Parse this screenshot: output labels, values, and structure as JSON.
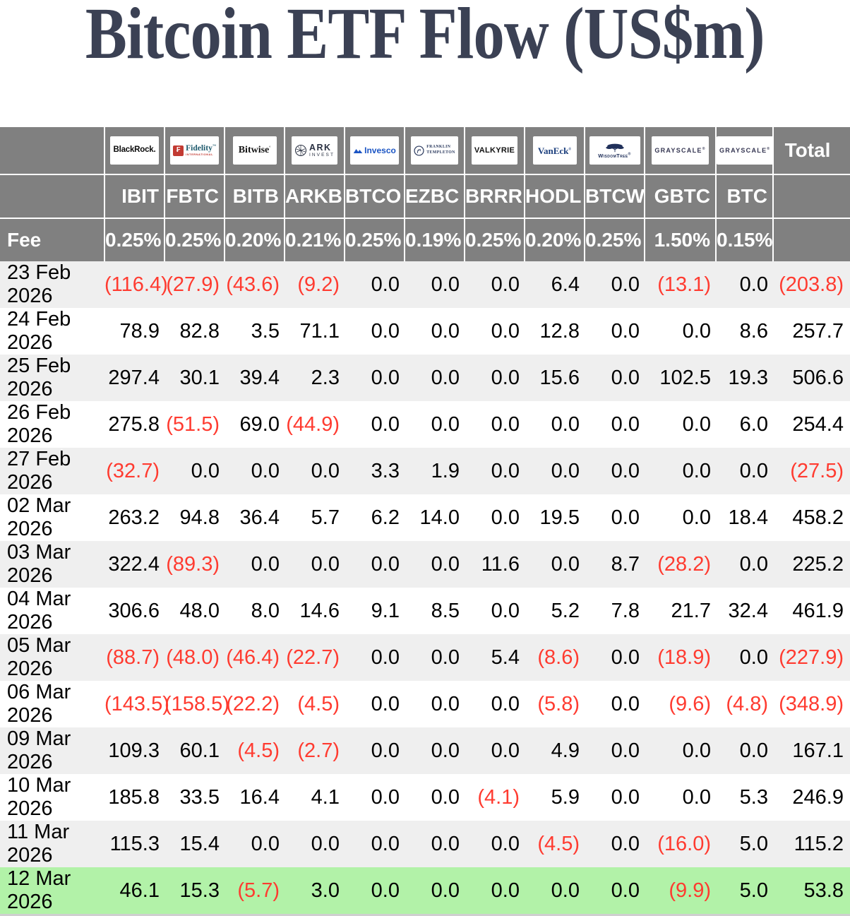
{
  "title": "Bitcoin ETF Flow (US$m)",
  "table": {
    "fee_label": "Fee",
    "total_label": "Total",
    "columns": [
      {
        "ticker": "IBIT",
        "provider": "BlackRock",
        "fee": "0.25%",
        "logo": {
          "text": "BlackRock."
        }
      },
      {
        "ticker": "FBTC",
        "provider": "Fidelity International",
        "fee": "0.25%",
        "logo": {
          "symbol": "₣",
          "text": "Fidelity",
          "mark": "™",
          "subtext": "INTERNATIONAL"
        }
      },
      {
        "ticker": "BITB",
        "provider": "Bitwise",
        "fee": "0.20%",
        "logo": {
          "text": "Bitwise",
          "mark": "°"
        }
      },
      {
        "ticker": "ARKB",
        "provider": "ARK Invest",
        "fee": "0.21%",
        "logo": {
          "text": "ARK",
          "subtext": "INVEST"
        }
      },
      {
        "ticker": "BTCO",
        "provider": "Invesco",
        "fee": "0.25%",
        "logo": {
          "text": "Invesco"
        }
      },
      {
        "ticker": "EZBC",
        "provider": "Franklin Templeton",
        "fee": "0.19%",
        "logo": {
          "text": "FRANKLIN",
          "subtext": "TEMPLETON"
        }
      },
      {
        "ticker": "BRRR",
        "provider": "Valkyrie",
        "fee": "0.25%",
        "logo": {
          "text": "VALKYRIE"
        }
      },
      {
        "ticker": "HODL",
        "provider": "VanEck",
        "fee": "0.20%",
        "logo": {
          "text": "VanEck",
          "mark": "®"
        }
      },
      {
        "ticker": "BTCW",
        "provider": "WisdomTree",
        "fee": "0.25%",
        "logo": {
          "text": "WisdomTree",
          "mark": "®"
        }
      },
      {
        "ticker": "GBTC",
        "provider": "Grayscale",
        "fee": "1.50%",
        "logo": {
          "text": "GRAYSCALE",
          "mark": "®"
        }
      },
      {
        "ticker": "BTC",
        "provider": "Grayscale",
        "fee": "0.15%",
        "logo": {
          "text": "GRAYSCALE",
          "mark": "®"
        }
      }
    ]
  },
  "chart_data": {
    "type": "table",
    "title": "Bitcoin ETF Flow (US$m)",
    "columns": [
      "IBIT",
      "FBTC",
      "BITB",
      "ARKB",
      "BTCO",
      "EZBC",
      "BRRR",
      "HODL",
      "BTCW",
      "GBTC",
      "BTC"
    ],
    "fees_pct": [
      0.25,
      0.25,
      0.2,
      0.21,
      0.25,
      0.19,
      0.25,
      0.2,
      0.25,
      1.5,
      0.15
    ],
    "negative_format": "red-parentheses",
    "highlighted_date": "12 Mar 2026",
    "rows": [
      {
        "date": "23 Feb 2026",
        "values": [
          -116.4,
          -27.9,
          -43.6,
          -9.2,
          0.0,
          0.0,
          0.0,
          6.4,
          0.0,
          -13.1,
          0.0
        ],
        "total": -203.8
      },
      {
        "date": "24 Feb 2026",
        "values": [
          78.9,
          82.8,
          3.5,
          71.1,
          0.0,
          0.0,
          0.0,
          12.8,
          0.0,
          0.0,
          8.6
        ],
        "total": 257.7
      },
      {
        "date": "25 Feb 2026",
        "values": [
          297.4,
          30.1,
          39.4,
          2.3,
          0.0,
          0.0,
          0.0,
          15.6,
          0.0,
          102.5,
          19.3
        ],
        "total": 506.6
      },
      {
        "date": "26 Feb 2026",
        "values": [
          275.8,
          -51.5,
          69.0,
          -44.9,
          0.0,
          0.0,
          0.0,
          0.0,
          0.0,
          0.0,
          6.0
        ],
        "total": 254.4
      },
      {
        "date": "27 Feb 2026",
        "values": [
          -32.7,
          0.0,
          0.0,
          0.0,
          3.3,
          1.9,
          0.0,
          0.0,
          0.0,
          0.0,
          0.0
        ],
        "total": -27.5
      },
      {
        "date": "02 Mar 2026",
        "values": [
          263.2,
          94.8,
          36.4,
          5.7,
          6.2,
          14.0,
          0.0,
          19.5,
          0.0,
          0.0,
          18.4
        ],
        "total": 458.2
      },
      {
        "date": "03 Mar 2026",
        "values": [
          322.4,
          -89.3,
          0.0,
          0.0,
          0.0,
          0.0,
          11.6,
          0.0,
          8.7,
          -28.2,
          0.0
        ],
        "total": 225.2
      },
      {
        "date": "04 Mar 2026",
        "values": [
          306.6,
          48.0,
          8.0,
          14.6,
          9.1,
          8.5,
          0.0,
          5.2,
          7.8,
          21.7,
          32.4
        ],
        "total": 461.9
      },
      {
        "date": "05 Mar 2026",
        "values": [
          -88.7,
          -48.0,
          -46.4,
          -22.7,
          0.0,
          0.0,
          5.4,
          -8.6,
          0.0,
          -18.9,
          0.0
        ],
        "total": -227.9
      },
      {
        "date": "06 Mar 2026",
        "values": [
          -143.5,
          -158.5,
          -22.2,
          -4.5,
          0.0,
          0.0,
          0.0,
          -5.8,
          0.0,
          -9.6,
          -4.8
        ],
        "total": -348.9
      },
      {
        "date": "09 Mar 2026",
        "values": [
          109.3,
          60.1,
          -4.5,
          -2.7,
          0.0,
          0.0,
          0.0,
          4.9,
          0.0,
          0.0,
          0.0
        ],
        "total": 167.1
      },
      {
        "date": "10 Mar 2026",
        "values": [
          185.8,
          33.5,
          16.4,
          4.1,
          0.0,
          0.0,
          -4.1,
          5.9,
          0.0,
          0.0,
          5.3
        ],
        "total": 246.9
      },
      {
        "date": "11 Mar 2026",
        "values": [
          115.3,
          15.4,
          0.0,
          0.0,
          0.0,
          0.0,
          0.0,
          -4.5,
          0.0,
          -16.0,
          5.0
        ],
        "total": 115.2
      },
      {
        "date": "12 Mar 2026",
        "values": [
          46.1,
          15.3,
          -5.7,
          3.0,
          0.0,
          0.0,
          0.0,
          0.0,
          0.0,
          -9.9,
          5.0
        ],
        "total": 53.8
      }
    ]
  },
  "colors": {
    "title": "#3b4154",
    "header_bg": "#808080",
    "row_alt": "#efefef",
    "row_highlight": "#b2f2a8",
    "negative": "#ff3b30"
  }
}
